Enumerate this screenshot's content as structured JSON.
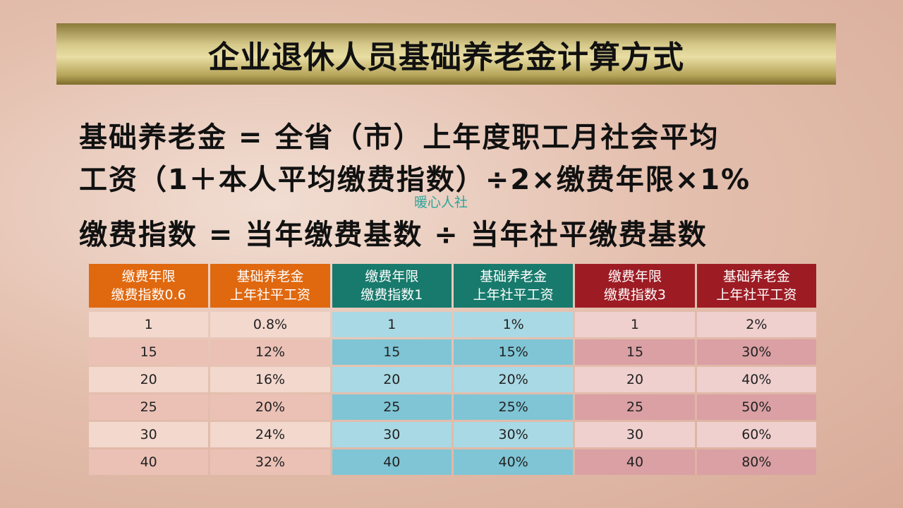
{
  "title": "企业退休人员基础养老金计算方式",
  "formula1_line1": "基础养老金 = 全省（市）上年度职工月社会平均",
  "formula1_line2": "工资（1＋本人平均缴费指数）÷2×缴费年限×1%",
  "watermark": "暖心人社",
  "formula2": "缴费指数 = 当年缴费基数 ÷ 当年社平缴费基数",
  "colors": {
    "orange": "#e0680f",
    "teal": "#187a6c",
    "red": "#9d1c24"
  },
  "table": {
    "headers": [
      [
        "缴费年限",
        "缴费指数0.6"
      ],
      [
        "基础养老金",
        "上年社平工资"
      ],
      [
        "缴费年限",
        "缴费指数1"
      ],
      [
        "基础养老金",
        "上年社平工资"
      ],
      [
        "缴费年限",
        "缴费指数3"
      ],
      [
        "基础养老金",
        "上年社平工资"
      ]
    ],
    "rows": [
      [
        "1",
        "0.8%",
        "1",
        "1%",
        "1",
        "2%"
      ],
      [
        "15",
        "12%",
        "15",
        "15%",
        "15",
        "30%"
      ],
      [
        "20",
        "16%",
        "20",
        "20%",
        "20",
        "40%"
      ],
      [
        "25",
        "20%",
        "25",
        "25%",
        "25",
        "50%"
      ],
      [
        "30",
        "24%",
        "30",
        "30%",
        "30",
        "60%"
      ],
      [
        "40",
        "32%",
        "40",
        "40%",
        "40",
        "80%"
      ]
    ]
  }
}
